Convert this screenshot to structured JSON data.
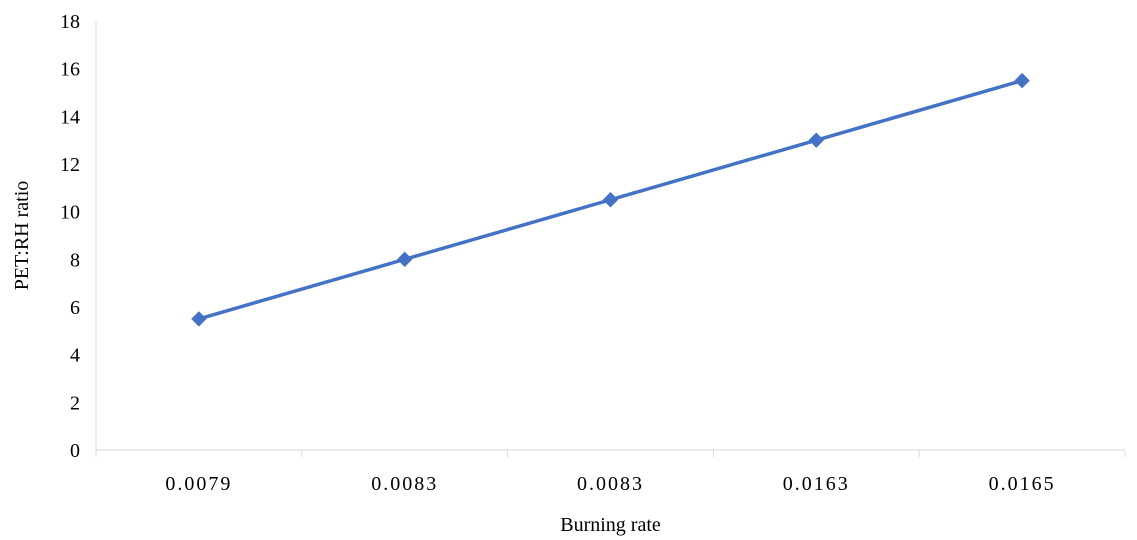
{
  "chart_data": {
    "type": "line",
    "title": "",
    "xlabel": "Burning rate",
    "ylabel": "PET:RH ratio",
    "categories": [
      "0.0079",
      "0.0083",
      "0.0083",
      "0.0163",
      "0.0165"
    ],
    "series": [
      {
        "values": [
          5.5,
          8,
          10.5,
          13,
          15.5
        ],
        "color": "#4472C4",
        "marker": "diamond"
      }
    ],
    "ylim": [
      0,
      18
    ],
    "yticks": [
      0,
      2,
      4,
      6,
      8,
      10,
      12,
      14,
      16,
      18
    ],
    "grid": false,
    "legend": "none"
  }
}
